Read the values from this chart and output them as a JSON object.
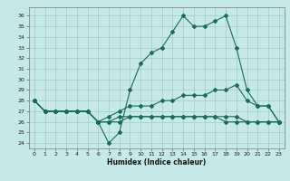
{
  "title": "",
  "xlabel": "Humidex (Indice chaleur)",
  "bg_color": "#c5e8e8",
  "grid_color": "#a8d0d0",
  "line_color": "#1a6b5a",
  "xlim": [
    -0.5,
    23.5
  ],
  "ylim": [
    23.5,
    36.8
  ],
  "yticks": [
    24,
    25,
    26,
    27,
    28,
    29,
    30,
    31,
    32,
    33,
    34,
    35,
    36
  ],
  "xticks": [
    0,
    1,
    2,
    3,
    4,
    5,
    6,
    7,
    8,
    9,
    10,
    11,
    12,
    13,
    14,
    15,
    16,
    17,
    18,
    19,
    20,
    21,
    22,
    23
  ],
  "lines": [
    {
      "x": [
        0,
        1,
        2,
        3,
        4,
        5,
        6,
        7,
        8,
        9,
        10,
        11,
        12,
        13,
        14,
        15,
        16,
        17,
        18,
        19,
        20,
        21,
        22,
        23
      ],
      "y": [
        28,
        27,
        27,
        27,
        27,
        27,
        26,
        24,
        25,
        29,
        31.5,
        32.5,
        33,
        34.5,
        36,
        35,
        35,
        35.5,
        36,
        33,
        29,
        27.5,
        27.5,
        26
      ]
    },
    {
      "x": [
        0,
        1,
        2,
        3,
        4,
        5,
        6,
        7,
        8,
        9,
        10,
        11,
        12,
        13,
        14,
        15,
        16,
        17,
        18,
        19,
        20,
        21,
        22,
        23
      ],
      "y": [
        28,
        27,
        27,
        27,
        27,
        27,
        26,
        26.5,
        27,
        27.5,
        27.5,
        27.5,
        28,
        28,
        28.5,
        28.5,
        28.5,
        29,
        29,
        29.5,
        28,
        27.5,
        27.5,
        26
      ]
    },
    {
      "x": [
        0,
        1,
        2,
        3,
        4,
        5,
        6,
        7,
        8,
        9,
        10,
        11,
        12,
        13,
        14,
        15,
        16,
        17,
        18,
        19,
        20,
        21,
        22,
        23
      ],
      "y": [
        28,
        27,
        27,
        27,
        27,
        27,
        26,
        26,
        26.5,
        26.5,
        26.5,
        26.5,
        26.5,
        26.5,
        26.5,
        26.5,
        26.5,
        26.5,
        26.5,
        26.5,
        26,
        26,
        26,
        26
      ]
    },
    {
      "x": [
        0,
        1,
        2,
        3,
        4,
        5,
        6,
        7,
        8,
        9,
        10,
        11,
        12,
        13,
        14,
        15,
        16,
        17,
        18,
        19,
        20,
        21,
        22,
        23
      ],
      "y": [
        28,
        27,
        27,
        27,
        27,
        27,
        26,
        26,
        26,
        26.5,
        26.5,
        26.5,
        26.5,
        26.5,
        26.5,
        26.5,
        26.5,
        26.5,
        26,
        26,
        26,
        26,
        26,
        26
      ]
    }
  ]
}
